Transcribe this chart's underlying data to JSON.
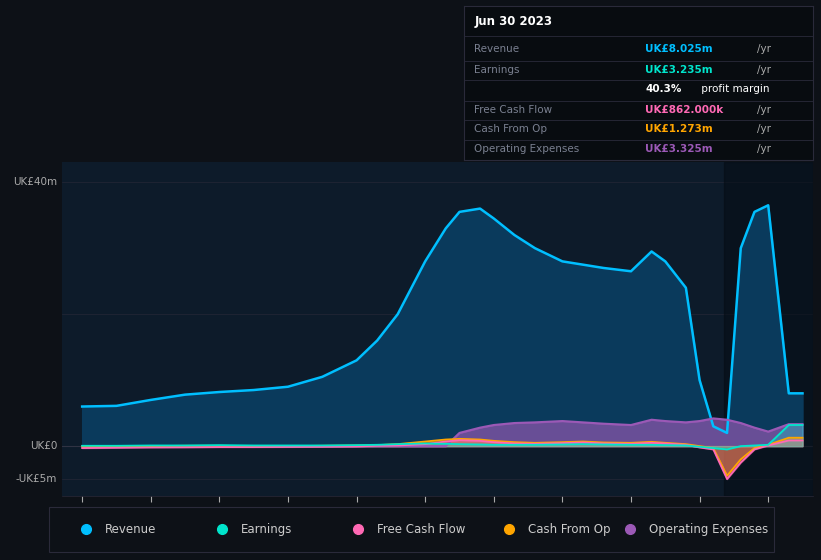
{
  "bg_color": "#0d1117",
  "plot_bg": "#0d1b2a",
  "title": "Jun 30 2023",
  "years": [
    2013.0,
    2013.5,
    2014.0,
    2014.5,
    2015.0,
    2015.5,
    2016.0,
    2016.5,
    2017.0,
    2017.3,
    2017.6,
    2018.0,
    2018.3,
    2018.5,
    2018.8,
    2019.0,
    2019.3,
    2019.6,
    2020.0,
    2020.3,
    2020.6,
    2021.0,
    2021.3,
    2021.5,
    2021.8,
    2022.0,
    2022.2,
    2022.4,
    2022.6,
    2022.8,
    2023.0,
    2023.3,
    2023.5
  ],
  "revenue": [
    6.0,
    6.1,
    7.0,
    7.8,
    8.2,
    8.5,
    9.0,
    10.5,
    13.0,
    16.0,
    20.0,
    28.0,
    33.0,
    35.5,
    36.0,
    34.5,
    32.0,
    30.0,
    28.0,
    27.5,
    27.0,
    26.5,
    29.5,
    28.0,
    24.0,
    10.0,
    3.0,
    2.0,
    30.0,
    35.5,
    36.5,
    8.0,
    8.0
  ],
  "earnings": [
    0.05,
    0.05,
    0.1,
    0.1,
    0.15,
    0.1,
    0.1,
    0.1,
    0.15,
    0.2,
    0.3,
    0.4,
    0.35,
    0.3,
    0.25,
    0.2,
    0.2,
    0.2,
    0.25,
    0.3,
    0.25,
    0.2,
    0.2,
    0.15,
    0.1,
    -0.1,
    -0.3,
    -0.5,
    0.0,
    0.1,
    0.2,
    3.2,
    3.2
  ],
  "free_cash_flow": [
    -0.3,
    -0.25,
    -0.2,
    -0.18,
    -0.15,
    -0.15,
    -0.12,
    -0.1,
    -0.05,
    0.05,
    0.1,
    0.3,
    0.7,
    0.9,
    0.8,
    0.6,
    0.4,
    0.35,
    0.45,
    0.55,
    0.4,
    0.35,
    0.5,
    0.4,
    0.2,
    -0.2,
    -0.5,
    -5.0,
    -2.5,
    -0.5,
    0.1,
    0.86,
    0.86
  ],
  "cash_from_op": [
    -0.1,
    -0.05,
    0.0,
    0.05,
    0.05,
    0.0,
    0.0,
    0.05,
    0.1,
    0.15,
    0.3,
    0.7,
    1.0,
    1.1,
    1.0,
    0.8,
    0.6,
    0.5,
    0.6,
    0.7,
    0.55,
    0.5,
    0.65,
    0.5,
    0.3,
    0.0,
    -0.3,
    -4.5,
    -2.0,
    -0.3,
    0.2,
    1.273,
    1.273
  ],
  "operating_expenses": [
    0.0,
    0.0,
    0.0,
    0.0,
    0.0,
    0.0,
    0.0,
    0.0,
    0.0,
    0.0,
    0.0,
    0.0,
    0.0,
    2.0,
    2.8,
    3.2,
    3.5,
    3.6,
    3.8,
    3.6,
    3.4,
    3.2,
    4.0,
    3.8,
    3.6,
    3.8,
    4.2,
    4.0,
    3.5,
    2.8,
    2.2,
    3.325,
    3.325
  ],
  "revenue_color": "#00bfff",
  "earnings_color": "#00e5cc",
  "free_cash_flow_color": "#ff69b4",
  "cash_from_op_color": "#ffa500",
  "operating_expenses_color": "#9b59b6",
  "revenue_fill": "#0a3a5c",
  "info_box": {
    "date": "Jun 30 2023",
    "revenue_val": "UK£8.025m",
    "revenue_color": "#00bfff",
    "earnings_val": "UK£3.235m",
    "earnings_color": "#00e5cc",
    "profit_margin": "40.3%",
    "fcf_val": "UK£862.000k",
    "fcf_color": "#ff69b4",
    "cash_op_val": "UK£1.273m",
    "cash_op_color": "#ffa500",
    "op_exp_val": "UK£3.325m",
    "op_exp_color": "#9b59b6"
  },
  "legend_items": [
    {
      "label": "Revenue",
      "color": "#00bfff"
    },
    {
      "label": "Earnings",
      "color": "#00e5cc"
    },
    {
      "label": "Free Cash Flow",
      "color": "#ff69b4"
    },
    {
      "label": "Cash From Op",
      "color": "#ffa500"
    },
    {
      "label": "Operating Expenses",
      "color": "#9b59b6"
    }
  ],
  "xlim": [
    2012.7,
    2023.65
  ],
  "ylim": [
    -7.5,
    43
  ],
  "xticks": [
    2013,
    2014,
    2015,
    2016,
    2017,
    2018,
    2019,
    2020,
    2021,
    2022,
    2023
  ],
  "grid_lines": [
    40,
    20,
    0,
    -5
  ],
  "ytick_positions": [
    40,
    0,
    -5
  ],
  "ytick_labels": [
    "UK£40m",
    "UK£0",
    "-UK£5m"
  ]
}
